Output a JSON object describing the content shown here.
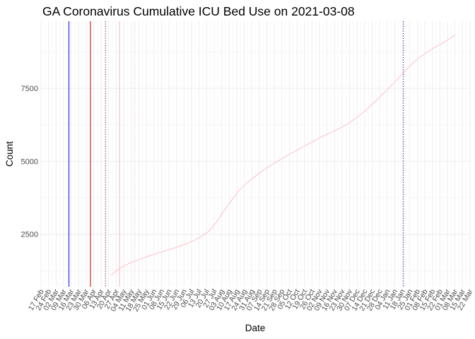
{
  "chart_data": {
    "type": "line",
    "title": "GA Coronavirus Cumulative ICU Bed Use on 2021-03-08",
    "xlabel": "Date",
    "ylabel": "Count",
    "ylim": [
      700,
      9800
    ],
    "yticks": [
      2500,
      5000,
      7500
    ],
    "ytick_labels": [
      "2500",
      "5000",
      "7500"
    ],
    "xlim": [
      "2020-02-17",
      "2021-03-22"
    ],
    "xtick_labels": [
      "17 Feb",
      "24 Feb",
      "02 Mar",
      "09 Mar",
      "16 Mar",
      "23 Mar",
      "30 Mar",
      "06 Apr",
      "13 Apr",
      "20 Apr",
      "27 Apr",
      "04 May",
      "11 May",
      "18 May",
      "25 May",
      "01 Jun",
      "08 Jun",
      "15 Jun",
      "22 Jun",
      "29 Jun",
      "06 Jul",
      "13 Jul",
      "20 Jul",
      "27 Jul",
      "03 Aug",
      "10 Aug",
      "17 Aug",
      "24 Aug",
      "31 Aug",
      "07 Sep",
      "14 Sep",
      "21 Sep",
      "28 Sep",
      "05 Oct",
      "12 Oct",
      "19 Oct",
      "26 Oct",
      "02 Nov",
      "09 Nov",
      "16 Nov",
      "23 Nov",
      "30 Nov",
      "07 Dec",
      "14 Dec",
      "21 Dec",
      "28 Dec",
      "04 Jan",
      "11 Jan",
      "18 Jan",
      "25 Jan",
      "01 Feb",
      "08 Feb",
      "15 Feb",
      "22 Feb",
      "01 Mar",
      "08 Mar",
      "15 Mar",
      "22 Mar"
    ],
    "grid": true,
    "series": [
      {
        "color": "#ffc0cb",
        "points": [
          [
            "2020-04-22",
            1100
          ],
          [
            "2020-04-29",
            1300
          ],
          [
            "2020-05-06",
            1450
          ],
          [
            "2020-05-13",
            1560
          ],
          [
            "2020-05-20",
            1660
          ],
          [
            "2020-05-27",
            1750
          ],
          [
            "2020-06-03",
            1830
          ],
          [
            "2020-06-10",
            1910
          ],
          [
            "2020-06-17",
            1990
          ],
          [
            "2020-06-24",
            2080
          ],
          [
            "2020-07-01",
            2170
          ],
          [
            "2020-07-08",
            2280
          ],
          [
            "2020-07-15",
            2420
          ],
          [
            "2020-07-22",
            2600
          ],
          [
            "2020-07-29",
            2900
          ],
          [
            "2020-08-05",
            3300
          ],
          [
            "2020-08-12",
            3650
          ],
          [
            "2020-08-19",
            4000
          ],
          [
            "2020-08-26",
            4250
          ],
          [
            "2020-09-02",
            4450
          ],
          [
            "2020-09-09",
            4650
          ],
          [
            "2020-09-16",
            4820
          ],
          [
            "2020-09-23",
            4980
          ],
          [
            "2020-09-30",
            5130
          ],
          [
            "2020-10-07",
            5280
          ],
          [
            "2020-10-14",
            5420
          ],
          [
            "2020-10-21",
            5560
          ],
          [
            "2020-10-28",
            5700
          ],
          [
            "2020-11-04",
            5840
          ],
          [
            "2020-11-11",
            5960
          ],
          [
            "2020-11-18",
            6080
          ],
          [
            "2020-11-25",
            6210
          ],
          [
            "2020-12-02",
            6380
          ],
          [
            "2020-12-09",
            6560
          ],
          [
            "2020-12-16",
            6780
          ],
          [
            "2020-12-23",
            7020
          ],
          [
            "2020-12-30",
            7270
          ],
          [
            "2021-01-06",
            7520
          ],
          [
            "2021-01-13",
            7790
          ],
          [
            "2021-01-20",
            8070
          ],
          [
            "2021-01-27",
            8340
          ],
          [
            "2021-02-03",
            8560
          ],
          [
            "2021-02-10",
            8740
          ],
          [
            "2021-02-17",
            8900
          ],
          [
            "2021-02-24",
            9040
          ],
          [
            "2021-03-03",
            9200
          ],
          [
            "2021-03-08",
            9330
          ]
        ]
      }
    ],
    "reference_lines": [
      {
        "date": "2020-03-14",
        "color": "#0000ff",
        "style": "solid"
      },
      {
        "date": "2020-04-03",
        "color": "#cc0000",
        "style": "solid"
      },
      {
        "date": "2020-04-17",
        "color": "#8b0000",
        "style": "dotted"
      },
      {
        "date": "2020-04-30",
        "color": "#ffb6c1",
        "style": "solid"
      },
      {
        "date": "2020-05-14",
        "color": "#ffb6c1",
        "style": "dotted"
      },
      {
        "date": "2021-01-19",
        "color": "#00008b",
        "style": "dotted"
      }
    ]
  }
}
